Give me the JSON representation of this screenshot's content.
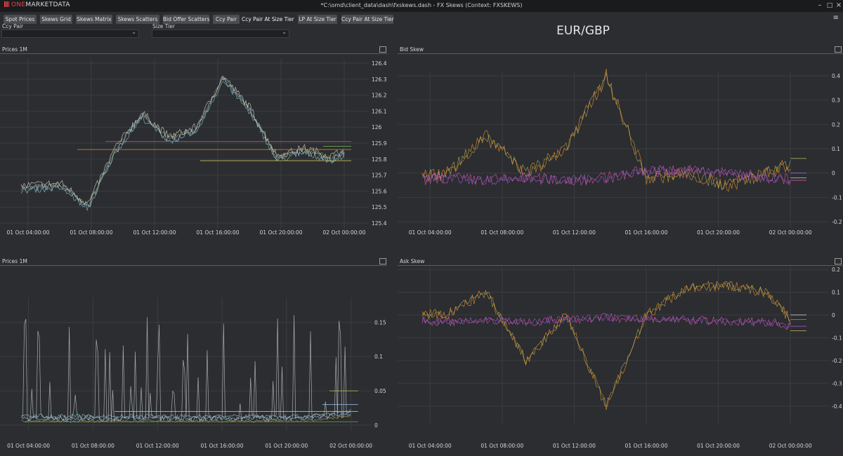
{
  "app": {
    "logo_prefix": "ONE",
    "logo_suffix": "MARKETDATA",
    "window_title": "*C:\\omd\\client_data\\dash\\fxskews.dash - FX Skews (Context: FXSKEWS)",
    "minimize_icon": "minimize-icon",
    "maximize_icon": "maximize-icon",
    "close_icon": "close-icon"
  },
  "tabs": [
    {
      "label": "Spot Prices",
      "active": false
    },
    {
      "label": "Skews Grid",
      "active": false
    },
    {
      "label": "Skews Matrix",
      "active": false
    },
    {
      "label": "Skews Scatters",
      "active": false
    },
    {
      "label": "Bid Offer Scatters",
      "active": false
    },
    {
      "label": "Ccy Pair",
      "active": false
    },
    {
      "label": "Ccy Pair At Size Tier",
      "active": true
    },
    {
      "label": "LP At Size Tier",
      "active": false
    },
    {
      "label": "Ccy Pair At Size Tier",
      "active": false
    }
  ],
  "filters": {
    "ccy_pair_label": "Ccy Pair",
    "ccy_pair_value": "",
    "size_tier_label": "Size Tier",
    "size_tier_value": ""
  },
  "pair_title": "EUR/GBP",
  "colors": {
    "bg": "#2b2d30",
    "grid": "#3b3d41",
    "accent": "#e64646",
    "series": [
      "#8fb4e8",
      "#c9c9c9",
      "#8ed0c8",
      "#c8c060",
      "#e08a2a",
      "#d04fa6",
      "#a060e0",
      "#6aa84f"
    ]
  },
  "panels": [
    {
      "title": "Prices 1M",
      "x_ticks": [
        "01 Oct 04:00:00",
        "01 Oct 08:00:00",
        "01 Oct 12:00:00",
        "01 Oct 16:00:00",
        "01 Oct 20:00:00",
        "02 Oct 00:00:00"
      ],
      "y_ticks": [
        "126.4",
        "126.3",
        "126.2",
        "126.1",
        "126",
        "125.9",
        "125.8",
        "125.7",
        "125.6",
        "125.5",
        "125.4"
      ]
    },
    {
      "title": "Bid Skew",
      "x_ticks": [
        "01 Oct 04:00:00",
        "01 Oct 08:00:00",
        "01 Oct 12:00:00",
        "01 Oct 16:00:00",
        "01 Oct 20:00:00",
        "02 Oct 00:00:00"
      ],
      "y_ticks": [
        "0.4",
        "0.3",
        "0.2",
        "0.1",
        "0",
        "-0.1",
        "-0.2"
      ]
    },
    {
      "title": "Prices 1M",
      "x_ticks": [
        "01 Oct 04:00:00",
        "01 Oct 08:00:00",
        "01 Oct 12:00:00",
        "01 Oct 16:00:00",
        "01 Oct 20:00:00",
        "02 Oct 00:00:00"
      ],
      "y_ticks": [
        "0.15",
        "0.1",
        "0.05",
        "0"
      ]
    },
    {
      "title": "Ask Skew",
      "x_ticks": [
        "01 Oct 04:00:00",
        "01 Oct 08:00:00",
        "01 Oct 12:00:00",
        "01 Oct 16:00:00",
        "01 Oct 20:00:00",
        "02 Oct 00:00:00"
      ],
      "y_ticks": [
        "0.2",
        "0.1",
        "0",
        "-0.1",
        "-0.2",
        "-0.3",
        "-0.4"
      ]
    }
  ],
  "chart_data": [
    {
      "type": "line",
      "title": "Prices 1M",
      "ylim": [
        125.4,
        126.4
      ],
      "x": [
        "01 Oct 02:00",
        "01 Oct 04:00",
        "01 Oct 06:00",
        "01 Oct 07:00",
        "01 Oct 08:00",
        "01 Oct 10:00",
        "01 Oct 12:00",
        "01 Oct 14:00",
        "01 Oct 15:00",
        "01 Oct 16:00",
        "01 Oct 18:00",
        "01 Oct 20:00",
        "01 Oct 22:00",
        "01 Oct 23:30"
      ],
      "series": [
        {
          "values": [
            125.6,
            125.62,
            125.63,
            125.5,
            125.85,
            126.07,
            125.92,
            125.98,
            126.3,
            126.1,
            125.8,
            125.85,
            125.8,
            125.87
          ]
        }
      ]
    },
    {
      "type": "line",
      "title": "Bid Skew",
      "ylim": [
        -0.2,
        0.4
      ],
      "x": [
        "01 Oct 02:00",
        "01 Oct 06:00",
        "01 Oct 08:00",
        "01 Oct 10:00",
        "01 Oct 12:00",
        "01 Oct 14:00",
        "01 Oct 16:00",
        "01 Oct 18:00",
        "01 Oct 20:00",
        "01 Oct 22:00",
        "01 Oct 23:30"
      ],
      "series": [
        {
          "values": [
            -0.02,
            0.0,
            0.15,
            0.0,
            0.1,
            0.4,
            -0.02,
            0.0,
            -0.05,
            0.0,
            0.06
          ]
        },
        {
          "values": [
            -0.03,
            -0.02,
            -0.03,
            -0.02,
            -0.03,
            -0.02,
            0.01,
            0.01,
            0.0,
            -0.02,
            -0.03
          ]
        }
      ]
    },
    {
      "type": "line",
      "title": "Prices 1M",
      "ylim": [
        0,
        0.18
      ],
      "x": [
        "01 Oct 02:00",
        "01 Oct 04:00",
        "01 Oct 08:00",
        "01 Oct 12:00",
        "01 Oct 16:00",
        "01 Oct 20:00",
        "01 Oct 23:30"
      ],
      "series": [
        {
          "values": [
            0.01,
            0.01,
            0.01,
            0.01,
            0.01,
            0.01,
            0.02
          ]
        }
      ]
    },
    {
      "type": "line",
      "title": "Ask Skew",
      "ylim": [
        -0.45,
        0.2
      ],
      "x": [
        "01 Oct 02:00",
        "01 Oct 06:00",
        "01 Oct 08:00",
        "01 Oct 10:00",
        "01 Oct 12:00",
        "01 Oct 14:00",
        "01 Oct 16:00",
        "01 Oct 18:00",
        "01 Oct 20:00",
        "01 Oct 22:00",
        "01 Oct 23:30"
      ],
      "series": [
        {
          "values": [
            0.0,
            0.0,
            0.1,
            -0.2,
            0.0,
            -0.4,
            0.0,
            0.12,
            0.13,
            0.1,
            -0.1
          ]
        },
        {
          "values": [
            -0.02,
            -0.03,
            -0.02,
            -0.03,
            -0.02,
            -0.01,
            -0.02,
            -0.02,
            -0.03,
            -0.03,
            -0.06
          ]
        }
      ]
    }
  ]
}
